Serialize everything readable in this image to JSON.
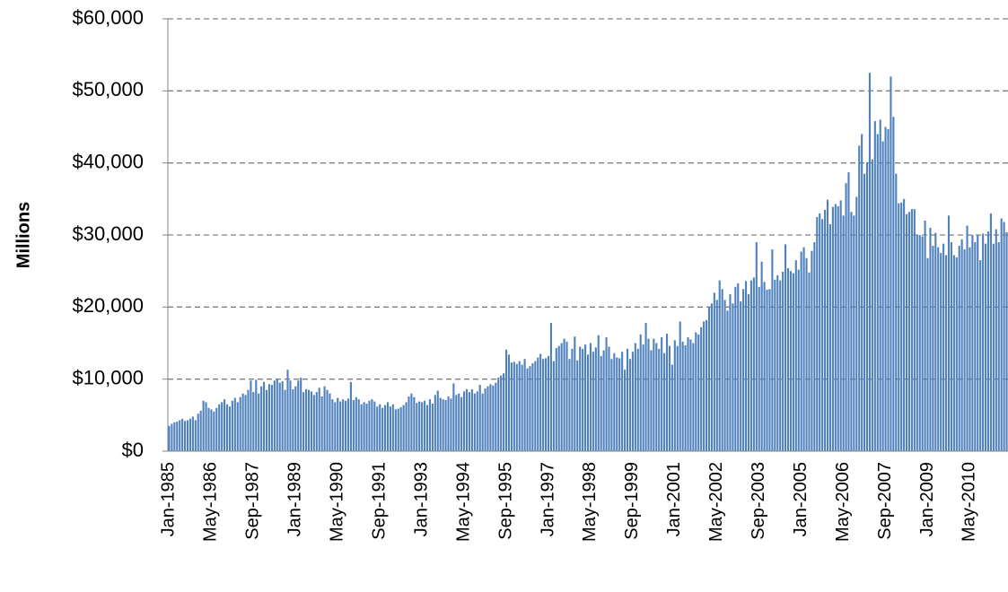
{
  "chart_data": {
    "type": "bar",
    "y_axis_label": "Millions",
    "color": "#4f81bd",
    "grid": true,
    "categories": [
      "Jan-1985",
      null,
      null,
      null,
      null,
      null,
      null,
      null,
      null,
      null,
      null,
      null,
      null,
      null,
      null,
      null,
      "May-1986",
      null,
      null,
      null,
      null,
      null,
      null,
      null,
      null,
      null,
      null,
      null,
      null,
      null,
      null,
      null,
      "Sep-1987",
      null,
      null,
      null,
      null,
      null,
      null,
      null,
      null,
      null,
      null,
      null,
      null,
      null,
      null,
      null,
      "Jan-1989",
      null,
      null,
      null,
      null,
      null,
      null,
      null,
      null,
      null,
      null,
      null,
      null,
      null,
      null,
      null,
      "May-1990",
      null,
      null,
      null,
      null,
      null,
      null,
      null,
      null,
      null,
      null,
      null,
      null,
      null,
      null,
      null,
      "Sep-1991",
      null,
      null,
      null,
      null,
      null,
      null,
      null,
      null,
      null,
      null,
      null,
      null,
      null,
      null,
      null,
      "Jan-1993",
      null,
      null,
      null,
      null,
      null,
      null,
      null,
      null,
      null,
      null,
      null,
      null,
      null,
      null,
      null,
      "May-1994",
      null,
      null,
      null,
      null,
      null,
      null,
      null,
      null,
      null,
      null,
      null,
      null,
      null,
      null,
      null,
      "Sep-1995",
      null,
      null,
      null,
      null,
      null,
      null,
      null,
      null,
      null,
      null,
      null,
      null,
      null,
      null,
      null,
      "Jan-1997",
      null,
      null,
      null,
      null,
      null,
      null,
      null,
      null,
      null,
      null,
      null,
      null,
      null,
      null,
      null,
      "May-1998",
      null,
      null,
      null,
      null,
      null,
      null,
      null,
      null,
      null,
      null,
      null,
      null,
      null,
      null,
      null,
      "Sep-1999",
      null,
      null,
      null,
      null,
      null,
      null,
      null,
      null,
      null,
      null,
      null,
      null,
      null,
      null,
      null,
      "Jan-2001",
      null,
      null,
      null,
      null,
      null,
      null,
      null,
      null,
      null,
      null,
      null,
      null,
      null,
      null,
      null,
      "May-2002",
      null,
      null,
      null,
      null,
      null,
      null,
      null,
      null,
      null,
      null,
      null,
      null,
      null,
      null,
      null,
      "Sep-2003",
      null,
      null,
      null,
      null,
      null,
      null,
      null,
      null,
      null,
      null,
      null,
      null,
      null,
      null,
      null,
      "Jan-2005",
      null,
      null,
      null,
      null,
      null,
      null,
      null,
      null,
      null,
      null,
      null,
      null,
      null,
      null,
      null,
      "May-2006",
      null,
      null,
      null,
      null,
      null,
      null,
      null,
      null,
      null,
      null,
      null,
      null,
      null,
      null,
      null,
      "Sep-2007",
      null,
      null,
      null,
      null,
      null,
      null,
      null,
      null,
      null,
      null,
      null,
      null,
      null,
      null,
      null,
      "Jan-2009",
      null,
      null,
      null,
      null,
      null,
      null,
      null,
      null,
      null,
      null,
      null,
      null,
      null,
      null,
      null,
      "May-2010",
      null,
      null,
      null,
      null,
      null,
      null,
      null,
      null,
      null,
      null,
      null,
      null,
      null,
      null
    ],
    "values": [
      3500,
      3800,
      4000,
      4100,
      4300,
      4500,
      4200,
      4300,
      4500,
      4800,
      4300,
      5200,
      5600,
      7000,
      6800,
      6000,
      5800,
      5500,
      6000,
      6500,
      6800,
      7200,
      6500,
      6200,
      7000,
      7400,
      6800,
      7500,
      8000,
      7800,
      8500,
      9800,
      8200,
      9900,
      8000,
      9000,
      9600,
      8500,
      9300,
      9200,
      9800,
      10000,
      9500,
      9700,
      8500,
      11300,
      9800,
      8600,
      9000,
      9800,
      10200,
      8200,
      8600,
      8500,
      8300,
      7800,
      8200,
      8800,
      7600,
      9000,
      8500,
      8000,
      7200,
      6800,
      7400,
      6900,
      7200,
      7000,
      7300,
      9600,
      7100,
      7500,
      7200,
      6500,
      6800,
      6600,
      7000,
      7200,
      6900,
      6200,
      6500,
      6000,
      6400,
      6800,
      6200,
      6500,
      5800,
      5900,
      6100,
      6400,
      6800,
      7600,
      8000,
      7500,
      6700,
      6900,
      6800,
      7000,
      6400,
      7200,
      6600,
      7800,
      8400,
      7400,
      7200,
      7100,
      7600,
      7300,
      9400,
      7800,
      8000,
      7500,
      8300,
      8600,
      8200,
      8600,
      8000,
      8300,
      9200,
      8000,
      8700,
      9000,
      9300,
      9100,
      9500,
      10200,
      10500,
      10800,
      14100,
      13400,
      12300,
      12400,
      12100,
      12500,
      12000,
      12800,
      11500,
      11800,
      12200,
      12500,
      13000,
      13500,
      12800,
      12900,
      13200,
      17800,
      12500,
      14300,
      14600,
      15000,
      15600,
      15200,
      12800,
      14200,
      15900,
      12600,
      14500,
      14200,
      14800,
      13400,
      15000,
      13800,
      14400,
      16100,
      13200,
      14000,
      15800,
      14500,
      12800,
      13600,
      13000,
      12900,
      13800,
      11300,
      14200,
      12800,
      13800,
      15000,
      14200,
      16200,
      14800,
      17800,
      15600,
      14000,
      15600,
      15000,
      14200,
      15800,
      13600,
      16300,
      14600,
      12000,
      15400,
      14600,
      18000,
      15200,
      14700,
      15800,
      15500,
      15000,
      16500,
      16200,
      17200,
      18000,
      18200,
      20000,
      20500,
      22000,
      21000,
      23700,
      22500,
      21000,
      19500,
      21800,
      20500,
      22800,
      23300,
      20800,
      22500,
      23600,
      21800,
      23700,
      24100,
      29000,
      22800,
      26300,
      23500,
      22400,
      22500,
      28000,
      23800,
      24400,
      23700,
      24900,
      28700,
      25400,
      25000,
      24700,
      26500,
      25200,
      27700,
      28300,
      26800,
      24800,
      27800,
      29000,
      32500,
      33000,
      32200,
      33500,
      34900,
      31500,
      33900,
      34300,
      34000,
      34800,
      32700,
      37200,
      38700,
      33200,
      32700,
      35300,
      42400,
      44000,
      38500,
      40100,
      52500,
      40500,
      45800,
      44000,
      46000,
      43000,
      45000,
      44700,
      52000,
      46400,
      38500,
      34400,
      34500,
      35000,
      32900,
      33200,
      33600,
      33600,
      30000,
      30000,
      29800,
      32000,
      26800,
      31000,
      28500,
      30300,
      28300,
      27500,
      28800,
      27200,
      32700,
      29000,
      27200,
      26900,
      28500,
      29400,
      28000,
      31300,
      28300,
      30000,
      29000,
      30000,
      26500,
      30200,
      28800,
      30500,
      33000,
      28800,
      30800,
      29000,
      32300,
      31800,
      30400
    ],
    "ylim": [
      0,
      60000
    ],
    "yticks": [
      {
        "value": 0,
        "label": "$0"
      },
      {
        "value": 10000,
        "label": "$10,000"
      },
      {
        "value": 20000,
        "label": "$20,000"
      },
      {
        "value": 30000,
        "label": "$30,000"
      },
      {
        "value": 40000,
        "label": "$40,000"
      },
      {
        "value": 50000,
        "label": "$50,000"
      },
      {
        "value": 60000,
        "label": "$60,000"
      }
    ]
  }
}
